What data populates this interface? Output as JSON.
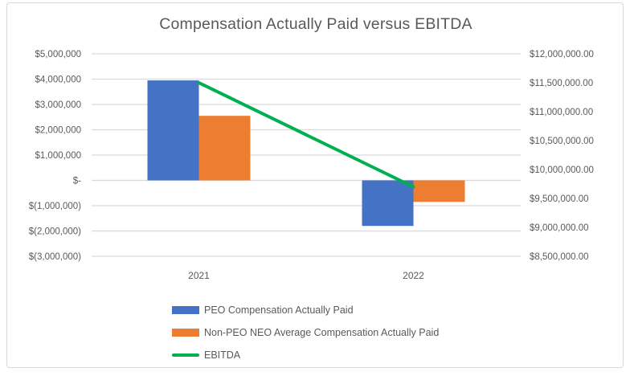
{
  "chart_data": {
    "type": "combo",
    "title": "Compensation Actually Paid versus EBITDA",
    "categories": [
      "2021",
      "2022"
    ],
    "series": [
      {
        "name": "PEO Compensation Actually Paid",
        "type": "bar",
        "axis": "left",
        "color": "#4472C4",
        "values": [
          3950000,
          -1800000
        ]
      },
      {
        "name": "Non-PEO NEO Average Compensation Actually Paid",
        "type": "bar",
        "axis": "left",
        "color": "#ED7D31",
        "values": [
          2550000,
          -850000
        ]
      },
      {
        "name": "EBITDA",
        "type": "line",
        "axis": "right",
        "color": "#00B050",
        "values": [
          11500000,
          9700000
        ]
      }
    ],
    "left_axis": {
      "tick_labels": [
        "$5,000,000",
        "$4,000,000",
        "$3,000,000",
        "$2,000,000",
        "$1,000,000",
        "$-",
        "$(1,000,000)",
        "$(2,000,000)",
        "$(3,000,000)"
      ],
      "tick_values": [
        5000000,
        4000000,
        3000000,
        2000000,
        1000000,
        0,
        -1000000,
        -2000000,
        -3000000
      ],
      "max": 5000000,
      "min": -3000000
    },
    "right_axis": {
      "tick_labels": [
        "$12,000,000.00",
        "$11,500,000.00",
        "$11,000,000.00",
        "$10,500,000.00",
        "$10,000,000.00",
        "$9,500,000.00",
        "$9,000,000.00",
        "$8,500,000.00"
      ],
      "tick_values": [
        12000000,
        11500000,
        11000000,
        10500000,
        10000000,
        9500000,
        9000000,
        8500000
      ],
      "max": 12000000,
      "min": 8500000
    },
    "grid": true,
    "legend_position": "bottom-left"
  },
  "colors": {
    "text": "#595959",
    "gridline": "#d9d9d9",
    "frame_border": "#d9d9d9",
    "background": "#ffffff"
  }
}
